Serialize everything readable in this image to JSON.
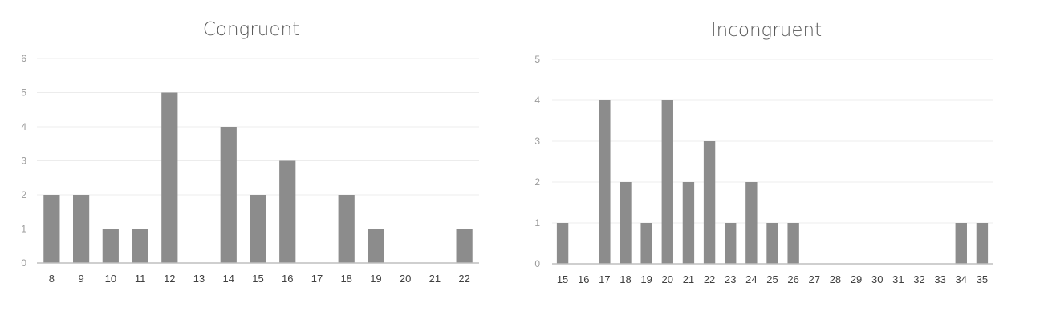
{
  "chart_data": [
    {
      "type": "bar",
      "title": "Congruent",
      "xlabel": "",
      "ylabel": "",
      "categories": [
        "8",
        "9",
        "10",
        "11",
        "12",
        "13",
        "14",
        "15",
        "16",
        "17",
        "18",
        "19",
        "20",
        "21",
        "22"
      ],
      "values": [
        2,
        2,
        1,
        1,
        5,
        0,
        4,
        2,
        3,
        0,
        2,
        1,
        0,
        0,
        1
      ],
      "ylim": [
        0,
        6
      ],
      "yticks": [
        "0",
        "1",
        "2",
        "3",
        "4",
        "5",
        "6"
      ],
      "grid": true,
      "bar_color": "#8c8c8c"
    },
    {
      "type": "bar",
      "title": "Incongruent",
      "xlabel": "",
      "ylabel": "",
      "categories": [
        "15",
        "16",
        "17",
        "18",
        "19",
        "20",
        "21",
        "22",
        "23",
        "24",
        "25",
        "26",
        "27",
        "28",
        "29",
        "30",
        "31",
        "32",
        "33",
        "34",
        "35"
      ],
      "values": [
        1,
        0,
        4,
        2,
        1,
        4,
        2,
        3,
        1,
        2,
        1,
        1,
        0,
        0,
        0,
        0,
        0,
        0,
        0,
        1,
        1
      ],
      "ylim": [
        0,
        5
      ],
      "yticks": [
        "0",
        "1",
        "2",
        "3",
        "4",
        "5"
      ],
      "grid": true,
      "bar_color": "#8c8c8c"
    }
  ]
}
